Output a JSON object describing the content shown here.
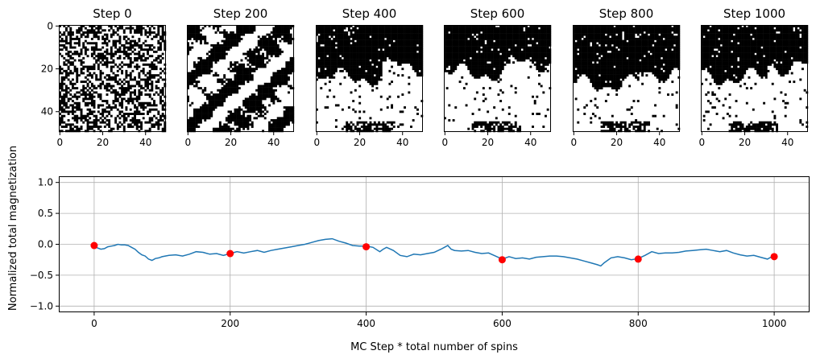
{
  "chart_data": [
    {
      "type": "heatmap",
      "title": "Step 0",
      "grid_size": 50,
      "xticks": [
        "0",
        "20",
        "40"
      ],
      "yticks": [
        "0",
        "20",
        "40"
      ],
      "pattern": "random"
    },
    {
      "type": "heatmap",
      "title": "Step 200",
      "grid_size": 50,
      "xticks": [
        "0",
        "20",
        "40"
      ],
      "pattern": "coarsening"
    },
    {
      "type": "heatmap",
      "title": "Step 400",
      "grid_size": 50,
      "xticks": [
        "0",
        "20",
        "40"
      ],
      "pattern": "domains"
    },
    {
      "type": "heatmap",
      "title": "Step 600",
      "grid_size": 50,
      "xticks": [
        "0",
        "20",
        "40"
      ],
      "pattern": "domains"
    },
    {
      "type": "heatmap",
      "title": "Step 800",
      "grid_size": 50,
      "xticks": [
        "0",
        "20",
        "40"
      ],
      "pattern": "domains"
    },
    {
      "type": "heatmap",
      "title": "Step 1000",
      "grid_size": 50,
      "xticks": [
        "0",
        "20",
        "40"
      ],
      "pattern": "domains"
    },
    {
      "type": "line",
      "xlabel": "MC Step * total number of spins",
      "ylabel": "Normalized total magnetization",
      "xlim": [
        -52,
        1052
      ],
      "ylim": [
        -1.1,
        1.1
      ],
      "xticks": [
        0,
        200,
        400,
        600,
        800,
        1000
      ],
      "yticks": [
        -1.0,
        -0.5,
        0.0,
        0.5,
        1.0
      ],
      "ytick_labels": [
        "−1.0",
        "−0.5",
        "0.0",
        "0.5",
        "1.0"
      ],
      "grid": true,
      "line_color": "#1f77b4",
      "marker_color": "#ff0000",
      "series_points": [
        [
          0,
          -0.02
        ],
        [
          5,
          -0.06
        ],
        [
          10,
          -0.08
        ],
        [
          15,
          -0.07
        ],
        [
          20,
          -0.04
        ],
        [
          25,
          -0.03
        ],
        [
          30,
          -0.02
        ],
        [
          35,
          0.0
        ],
        [
          40,
          -0.01
        ],
        [
          45,
          -0.01
        ],
        [
          50,
          -0.02
        ],
        [
          55,
          -0.05
        ],
        [
          60,
          -0.08
        ],
        [
          65,
          -0.13
        ],
        [
          70,
          -0.17
        ],
        [
          75,
          -0.19
        ],
        [
          80,
          -0.24
        ],
        [
          85,
          -0.26
        ],
        [
          90,
          -0.23
        ],
        [
          95,
          -0.22
        ],
        [
          100,
          -0.2
        ],
        [
          110,
          -0.18
        ],
        [
          120,
          -0.17
        ],
        [
          130,
          -0.19
        ],
        [
          140,
          -0.16
        ],
        [
          150,
          -0.12
        ],
        [
          160,
          -0.13
        ],
        [
          170,
          -0.16
        ],
        [
          180,
          -0.15
        ],
        [
          190,
          -0.18
        ],
        [
          200,
          -0.15
        ],
        [
          210,
          -0.12
        ],
        [
          220,
          -0.14
        ],
        [
          230,
          -0.12
        ],
        [
          240,
          -0.1
        ],
        [
          250,
          -0.13
        ],
        [
          260,
          -0.1
        ],
        [
          270,
          -0.08
        ],
        [
          280,
          -0.06
        ],
        [
          290,
          -0.04
        ],
        [
          300,
          -0.02
        ],
        [
          310,
          0.0
        ],
        [
          320,
          0.03
        ],
        [
          330,
          0.06
        ],
        [
          340,
          0.08
        ],
        [
          350,
          0.09
        ],
        [
          360,
          0.05
        ],
        [
          370,
          0.02
        ],
        [
          380,
          -0.02
        ],
        [
          390,
          -0.03
        ],
        [
          400,
          -0.03
        ],
        [
          410,
          -0.05
        ],
        [
          420,
          -0.12
        ],
        [
          425,
          -0.08
        ],
        [
          430,
          -0.05
        ],
        [
          440,
          -0.1
        ],
        [
          450,
          -0.18
        ],
        [
          460,
          -0.2
        ],
        [
          470,
          -0.16
        ],
        [
          480,
          -0.17
        ],
        [
          490,
          -0.15
        ],
        [
          500,
          -0.13
        ],
        [
          510,
          -0.08
        ],
        [
          515,
          -0.05
        ],
        [
          520,
          -0.02
        ],
        [
          525,
          -0.08
        ],
        [
          530,
          -0.1
        ],
        [
          540,
          -0.11
        ],
        [
          550,
          -0.1
        ],
        [
          560,
          -0.13
        ],
        [
          570,
          -0.15
        ],
        [
          580,
          -0.14
        ],
        [
          590,
          -0.19
        ],
        [
          600,
          -0.24
        ],
        [
          610,
          -0.2
        ],
        [
          620,
          -0.23
        ],
        [
          630,
          -0.22
        ],
        [
          640,
          -0.24
        ],
        [
          650,
          -0.21
        ],
        [
          660,
          -0.2
        ],
        [
          670,
          -0.19
        ],
        [
          680,
          -0.19
        ],
        [
          690,
          -0.2
        ],
        [
          700,
          -0.22
        ],
        [
          710,
          -0.24
        ],
        [
          720,
          -0.27
        ],
        [
          730,
          -0.3
        ],
        [
          740,
          -0.33
        ],
        [
          745,
          -0.35
        ],
        [
          750,
          -0.3
        ],
        [
          760,
          -0.22
        ],
        [
          770,
          -0.2
        ],
        [
          780,
          -0.22
        ],
        [
          790,
          -0.25
        ],
        [
          800,
          -0.23
        ],
        [
          810,
          -0.18
        ],
        [
          820,
          -0.12
        ],
        [
          830,
          -0.15
        ],
        [
          840,
          -0.14
        ],
        [
          850,
          -0.14
        ],
        [
          860,
          -0.13
        ],
        [
          870,
          -0.11
        ],
        [
          880,
          -0.1
        ],
        [
          890,
          -0.09
        ],
        [
          900,
          -0.08
        ],
        [
          910,
          -0.1
        ],
        [
          920,
          -0.12
        ],
        [
          930,
          -0.1
        ],
        [
          940,
          -0.14
        ],
        [
          950,
          -0.17
        ],
        [
          960,
          -0.19
        ],
        [
          970,
          -0.18
        ],
        [
          980,
          -0.21
        ],
        [
          990,
          -0.24
        ],
        [
          995,
          -0.21
        ],
        [
          1000,
          -0.2
        ]
      ],
      "markers": [
        {
          "x": 0,
          "y": -0.02
        },
        {
          "x": 200,
          "y": -0.15
        },
        {
          "x": 400,
          "y": -0.04
        },
        {
          "x": 600,
          "y": -0.25
        },
        {
          "x": 800,
          "y": -0.24
        },
        {
          "x": 1000,
          "y": -0.2
        }
      ]
    }
  ]
}
